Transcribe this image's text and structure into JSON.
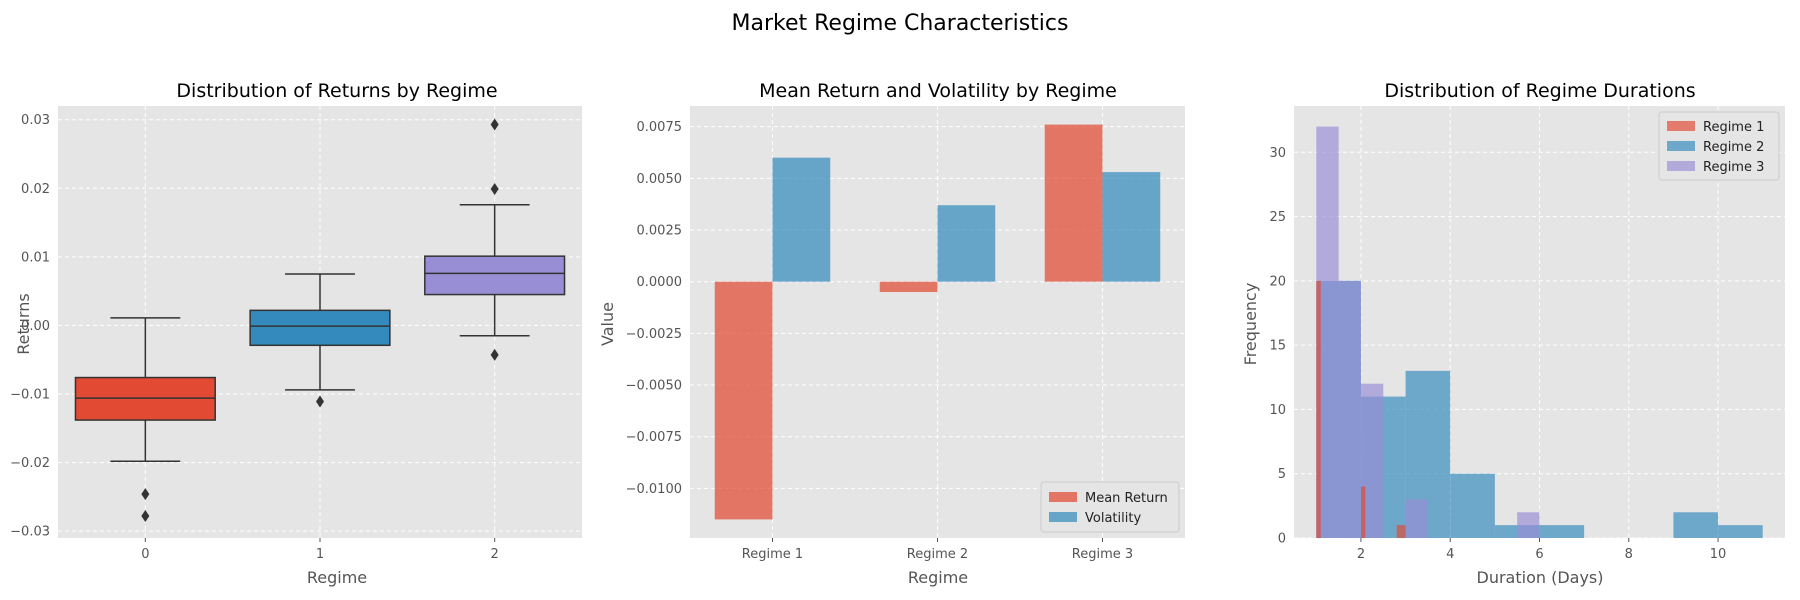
{
  "figure": {
    "suptitle": "Market Regime Characteristics"
  },
  "colors": {
    "panel_bg": "#e5e5e5",
    "grid": "#ffffff",
    "red": "#e24a33",
    "blue": "#348abd",
    "purple": "#988ed5",
    "line": "#333333"
  },
  "chart_data": [
    {
      "type": "box",
      "title": "Distribution of Returns by Regime",
      "xlabel": "Regime",
      "ylabel": "Returns",
      "categories": [
        "0",
        "1",
        "2"
      ],
      "ylim": [
        -0.031,
        0.032
      ],
      "yticks": [
        -0.03,
        -0.02,
        -0.01,
        0.0,
        0.01,
        0.02,
        0.03
      ],
      "ytick_labels": [
        "−0.03",
        "−0.02",
        "−0.01",
        "0.00",
        "0.01",
        "0.02",
        "0.03"
      ],
      "boxes": [
        {
          "category": "0",
          "whisker_low": -0.0198,
          "q1": -0.0138,
          "median": -0.0106,
          "q3": -0.0076,
          "whisker_high": 0.0011,
          "outliers": [
            -0.0246,
            -0.0278
          ],
          "color": "#e24a33"
        },
        {
          "category": "1",
          "whisker_low": -0.0094,
          "q1": -0.0029,
          "median": -0.0001,
          "q3": 0.0022,
          "whisker_high": 0.0075,
          "outliers": [
            -0.0111
          ],
          "color": "#348abd"
        },
        {
          "category": "2",
          "whisker_low": -0.0015,
          "q1": 0.0045,
          "median": 0.0076,
          "q3": 0.0101,
          "whisker_high": 0.0176,
          "outliers": [
            0.0293,
            0.0199,
            -0.0043
          ],
          "color": "#988ed5"
        }
      ]
    },
    {
      "type": "bar",
      "title": "Mean Return and Volatility by Regime",
      "xlabel": "Regime",
      "ylabel": "Value",
      "categories": [
        "Regime 1",
        "Regime 2",
        "Regime 3"
      ],
      "ylim": [
        -0.0124,
        0.0085
      ],
      "yticks": [
        -0.01,
        -0.0075,
        -0.005,
        -0.0025,
        0.0,
        0.0025,
        0.005,
        0.0075
      ],
      "ytick_labels": [
        "−0.0100",
        "−0.0075",
        "−0.0050",
        "−0.0025",
        "0.0000",
        "0.0025",
        "0.0050",
        "0.0075"
      ],
      "series": [
        {
          "name": "Mean Return",
          "values": [
            -0.0115,
            -0.0005,
            0.0076
          ],
          "color": "#e24a33"
        },
        {
          "name": "Volatility",
          "values": [
            0.006,
            0.0037,
            0.0053
          ],
          "color": "#348abd"
        }
      ],
      "legend": "lower-right"
    },
    {
      "type": "histogram",
      "title": "Distribution of Regime Durations",
      "xlabel": "Duration (Days)",
      "ylabel": "Frequency",
      "xlim": [
        0.5,
        11.5
      ],
      "ylim": [
        0,
        33.6
      ],
      "xticks": [
        2,
        4,
        6,
        8,
        10
      ],
      "xtick_labels": [
        "2",
        "4",
        "6",
        "8",
        "10"
      ],
      "yticks": [
        0,
        5,
        10,
        15,
        20,
        25,
        30
      ],
      "ytick_labels": [
        "0",
        "5",
        "10",
        "15",
        "20",
        "25",
        "30"
      ],
      "series": [
        {
          "name": "Regime 1",
          "color": "#e24a33",
          "bins": [
            {
              "x0": 1.0,
              "x1": 1.1,
              "count": 20
            },
            {
              "x0": 2.0,
              "x1": 2.1,
              "count": 4
            },
            {
              "x0": 2.8,
              "x1": 3.0,
              "count": 1
            }
          ]
        },
        {
          "name": "Regime 2",
          "color": "#348abd",
          "bins": [
            {
              "x0": 1.0,
              "x1": 2.0,
              "count": 20
            },
            {
              "x0": 2.0,
              "x1": 3.0,
              "count": 11
            },
            {
              "x0": 3.0,
              "x1": 4.0,
              "count": 13
            },
            {
              "x0": 4.0,
              "x1": 5.0,
              "count": 5
            },
            {
              "x0": 5.0,
              "x1": 6.0,
              "count": 1
            },
            {
              "x0": 6.0,
              "x1": 7.0,
              "count": 1
            },
            {
              "x0": 9.0,
              "x1": 10.0,
              "count": 2
            },
            {
              "x0": 10.0,
              "x1": 11.0,
              "count": 1
            }
          ]
        },
        {
          "name": "Regime 3",
          "color": "#988ed5",
          "bins": [
            {
              "x0": 1.0,
              "x1": 1.5,
              "count": 32
            },
            {
              "x0": 1.5,
              "x1": 2.0,
              "count": 20
            },
            {
              "x0": 2.0,
              "x1": 2.5,
              "count": 12
            },
            {
              "x0": 2.5,
              "x1": 3.0,
              "count": 0
            },
            {
              "x0": 3.0,
              "x1": 3.5,
              "count": 3
            },
            {
              "x0": 5.5,
              "x1": 6.0,
              "count": 2
            }
          ]
        }
      ],
      "legend": "upper-right"
    }
  ]
}
